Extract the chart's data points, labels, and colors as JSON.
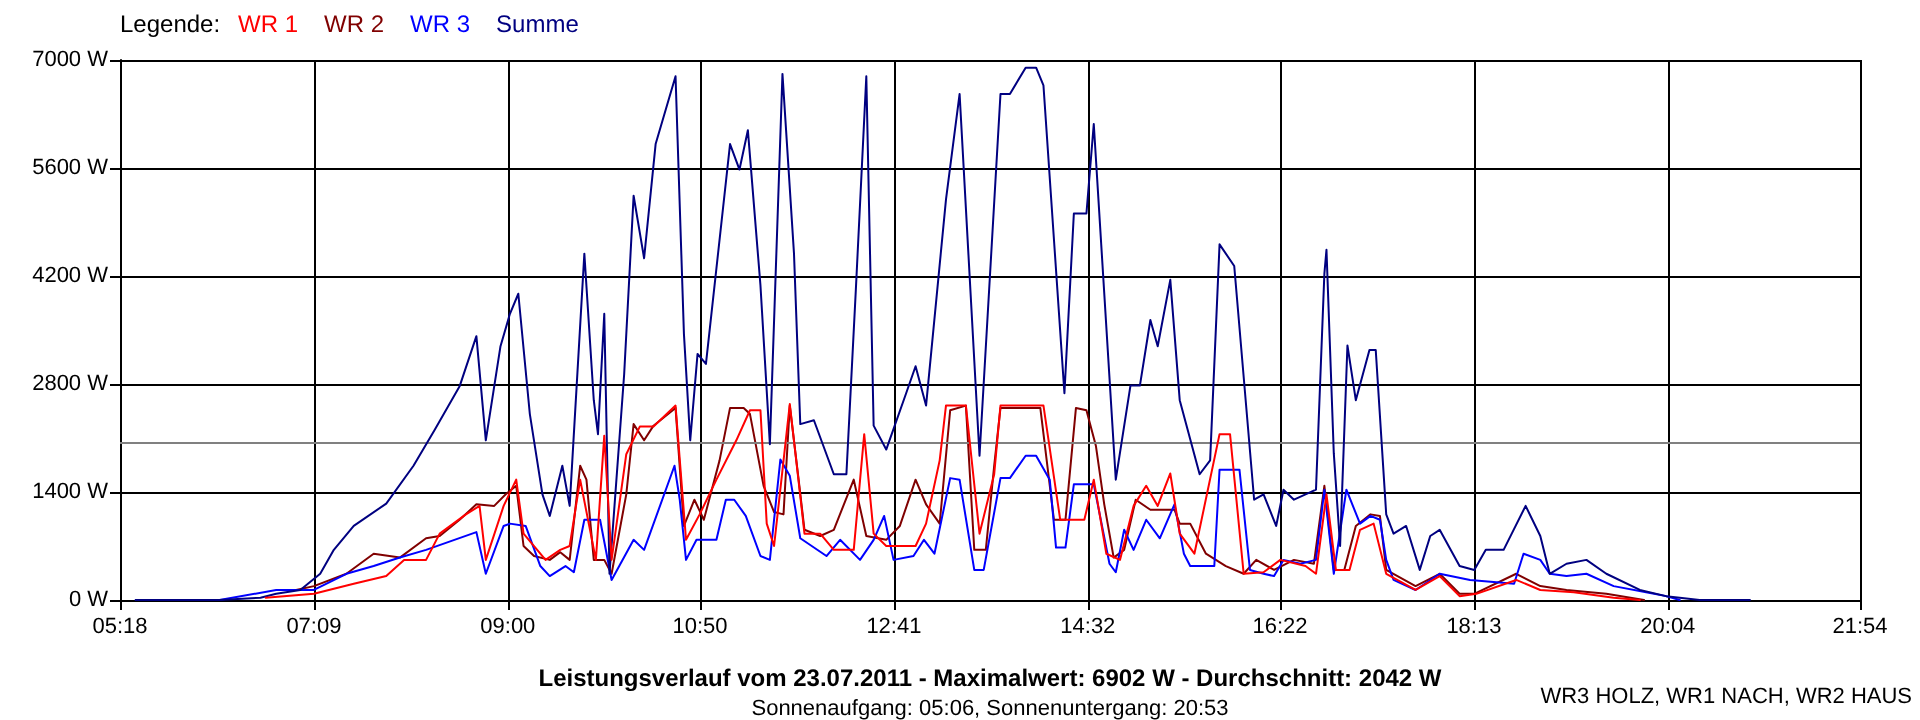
{
  "chart_data": {
    "type": "line",
    "title": "Leistungsverlauf vom 23.07.2011 - Maximalwert: 6902 W - Durchschnitt: 2042 W",
    "subtitle": "Sonnenaufgang: 05:06, Sonnenuntergang: 20:53",
    "legend_title": "Legende:",
    "annotations": [
      "WR3 HOLZ, WR1 NACH, WR2 HAUS"
    ],
    "legend": "top left",
    "grid": true,
    "marker": "none",
    "line_style": "solid",
    "xlim": [
      5.3,
      21.9
    ],
    "xticks": [
      {
        "value": 5.3,
        "label": "05:18"
      },
      {
        "value": 7.15,
        "label": "07:09"
      },
      {
        "value": 9.0,
        "label": "09:00"
      },
      {
        "value": 10.8333,
        "label": "10:50"
      },
      {
        "value": 12.6833,
        "label": "12:41"
      },
      {
        "value": 14.5333,
        "label": "14:32"
      },
      {
        "value": 16.3667,
        "label": "16:22"
      },
      {
        "value": 18.2167,
        "label": "18:13"
      },
      {
        "value": 20.0667,
        "label": "20:04"
      },
      {
        "value": 21.9,
        "label": "21:54"
      }
    ],
    "ylim": [
      0,
      7000
    ],
    "yticks": [
      {
        "value": 0,
        "label": "0 W"
      },
      {
        "value": 1400,
        "label": "1400 W"
      },
      {
        "value": 2800,
        "label": "2800 W"
      },
      {
        "value": 4200,
        "label": "4200 W"
      },
      {
        "value": 5600,
        "label": "5600 W"
      },
      {
        "value": 7000,
        "label": "7000 W"
      }
    ],
    "ref_lines": [
      {
        "axis": "y",
        "value": 2042,
        "color": "#808080"
      }
    ],
    "series": [
      {
        "name": "WR 1",
        "color": "#ff0000",
        "x": [
          6.69,
          7.15,
          7.53,
          7.84,
          8.01,
          8.22,
          8.35,
          8.6,
          8.73,
          8.79,
          8.96,
          9.08,
          9.15,
          9.36,
          9.5,
          9.59,
          9.69,
          9.84,
          9.92,
          9.99,
          10.13,
          10.26,
          10.39,
          10.6,
          10.7,
          10.83,
          10.99,
          11.18,
          11.31,
          11.41,
          11.47,
          11.54,
          11.69,
          11.79,
          11.83,
          11.98,
          12.11,
          12.3,
          12.4,
          12.49,
          12.61,
          12.89,
          12.99,
          13.12,
          13.18,
          13.37,
          13.5,
          13.64,
          13.7,
          14.11,
          14.27,
          14.5,
          14.59,
          14.71,
          14.84,
          14.97,
          15.09,
          15.2,
          15.32,
          15.41,
          15.55,
          15.79,
          15.89,
          16.02,
          16.21,
          16.37,
          16.61,
          16.71,
          16.81,
          16.9,
          17.03,
          17.13,
          17.26,
          17.38,
          17.66,
          17.89,
          18.08,
          18.24,
          18.62,
          18.85,
          19.17,
          19.55,
          19.8
        ],
        "values": [
          30,
          80,
          210,
          310,
          520,
          520,
          860,
          1110,
          1220,
          520,
          1220,
          1560,
          860,
          520,
          650,
          700,
          1560,
          520,
          2130,
          520,
          1890,
          2250,
          2250,
          2520,
          780,
          1110,
          1560,
          2070,
          2460,
          2460,
          990,
          700,
          2540,
          1350,
          860,
          860,
          650,
          650,
          2150,
          860,
          700,
          700,
          990,
          1810,
          2520,
          2520,
          860,
          1630,
          2520,
          2520,
          1040,
          1040,
          1560,
          600,
          520,
          1220,
          1480,
          1220,
          1640,
          860,
          600,
          2150,
          2150,
          340,
          360,
          520,
          440,
          340,
          1370,
          390,
          390,
          910,
          990,
          340,
          130,
          310,
          50,
          80,
          260,
          130,
          100,
          30,
          0
        ]
      },
      {
        "name": "WR 2",
        "color": "#800000",
        "x": [
          6.98,
          7.15,
          7.46,
          7.72,
          7.97,
          8.22,
          8.35,
          8.54,
          8.7,
          8.87,
          8.98,
          9.08,
          9.15,
          9.25,
          9.4,
          9.5,
          9.59,
          9.69,
          9.75,
          9.82,
          9.92,
          9.99,
          10.13,
          10.2,
          10.3,
          10.39,
          10.6,
          10.68,
          10.78,
          10.87,
          11.02,
          11.12,
          11.25,
          11.31,
          11.44,
          11.54,
          11.63,
          11.69,
          11.77,
          11.83,
          11.98,
          12.11,
          12.3,
          12.42,
          12.61,
          12.74,
          12.89,
          12.99,
          13.12,
          13.22,
          13.37,
          13.45,
          13.56,
          13.64,
          13.7,
          14.08,
          14.21,
          14.32,
          14.42,
          14.52,
          14.61,
          14.69,
          14.78,
          14.88,
          14.99,
          15.13,
          15.36,
          15.41,
          15.51,
          15.66,
          15.85,
          16.02,
          16.14,
          16.31,
          16.5,
          16.69,
          16.79,
          16.88,
          16.98,
          17.09,
          17.23,
          17.32,
          17.38,
          17.66,
          17.89,
          18.08,
          18.22,
          18.62,
          18.85,
          19.1,
          19.48,
          19.84
        ],
        "values": [
          130,
          180,
          340,
          600,
          550,
          800,
          830,
          1040,
          1240,
          1220,
          1370,
          1480,
          700,
          570,
          520,
          620,
          520,
          1740,
          1560,
          520,
          520,
          340,
          1370,
          2280,
          2070,
          2260,
          2490,
          960,
          1300,
          1040,
          1810,
          2490,
          2490,
          2410,
          1480,
          1140,
          1110,
          2520,
          1610,
          910,
          830,
          910,
          1560,
          830,
          780,
          960,
          1560,
          1240,
          990,
          2460,
          2520,
          650,
          650,
          1740,
          2490,
          2490,
          1040,
          1040,
          2490,
          2460,
          2000,
          1240,
          550,
          650,
          1300,
          1170,
          1170,
          990,
          990,
          600,
          440,
          340,
          520,
          390,
          520,
          470,
          1480,
          390,
          390,
          960,
          1110,
          1090,
          390,
          180,
          340,
          80,
          80,
          340,
          180,
          130,
          80,
          0
        ]
      },
      {
        "name": "WR 3",
        "color": "#0000ff",
        "x": [
          5.45,
          6.25,
          6.79,
          7.15,
          7.46,
          7.72,
          7.97,
          8.22,
          8.7,
          8.79,
          8.96,
          9.02,
          9.17,
          9.31,
          9.4,
          9.55,
          9.63,
          9.73,
          9.88,
          9.99,
          10.2,
          10.3,
          10.59,
          10.64,
          10.7,
          10.8,
          10.99,
          11.08,
          11.16,
          11.27,
          11.41,
          11.5,
          11.6,
          11.69,
          11.79,
          12.04,
          12.17,
          12.36,
          12.49,
          12.59,
          12.68,
          12.87,
          12.97,
          13.07,
          13.22,
          13.31,
          13.45,
          13.54,
          13.7,
          13.79,
          13.94,
          14.04,
          14.17,
          14.23,
          14.32,
          14.4,
          14.59,
          14.74,
          14.8,
          14.88,
          14.97,
          15.09,
          15.22,
          15.36,
          15.45,
          15.51,
          15.74,
          15.79,
          15.98,
          16.08,
          16.21,
          16.31,
          16.4,
          16.56,
          16.71,
          16.79,
          16.88,
          17.0,
          17.13,
          17.23,
          17.32,
          17.38,
          17.45,
          17.66,
          17.89,
          18.18,
          18.6,
          18.69,
          18.85,
          18.94,
          19.1,
          19.29,
          19.55,
          19.86,
          20.05,
          20.18
        ],
        "values": [
          0,
          0,
          130,
          130,
          340,
          440,
          550,
          650,
          880,
          340,
          960,
          990,
          960,
          440,
          310,
          440,
          360,
          1040,
          1040,
          260,
          780,
          650,
          1740,
          1300,
          520,
          780,
          780,
          1300,
          1300,
          1090,
          570,
          520,
          1820,
          1610,
          800,
          570,
          780,
          520,
          780,
          1090,
          520,
          570,
          780,
          600,
          1580,
          1560,
          390,
          390,
          1580,
          1580,
          1870,
          1870,
          1560,
          680,
          680,
          1500,
          1500,
          470,
          360,
          910,
          650,
          1040,
          800,
          1240,
          600,
          440,
          440,
          1690,
          1690,
          390,
          340,
          310,
          520,
          470,
          520,
          1430,
          340,
          1430,
          990,
          1090,
          1040,
          520,
          260,
          130,
          340,
          260,
          210,
          600,
          520,
          340,
          310,
          340,
          180,
          100,
          50,
          0
        ]
      },
      {
        "name": "Summe",
        "color": "#000080",
        "x": [
          5.45,
          6.25,
          6.64,
          6.79,
          7.02,
          7.21,
          7.34,
          7.53,
          7.84,
          8.1,
          8.3,
          8.54,
          8.7,
          8.79,
          8.93,
          9.02,
          9.1,
          9.21,
          9.33,
          9.4,
          9.52,
          9.59,
          9.73,
          9.82,
          9.86,
          9.92,
          9.97,
          10.11,
          10.2,
          10.3,
          10.41,
          10.6,
          10.68,
          10.74,
          10.81,
          10.89,
          11.12,
          11.21,
          11.29,
          11.41,
          11.5,
          11.62,
          11.73,
          11.79,
          11.92,
          12.11,
          12.23,
          12.32,
          12.42,
          12.49,
          12.61,
          12.8,
          12.89,
          12.99,
          13.18,
          13.31,
          13.5,
          13.7,
          13.79,
          13.94,
          14.04,
          14.11,
          14.31,
          14.4,
          14.52,
          14.59,
          14.8,
          14.94,
          15.03,
          15.13,
          15.2,
          15.32,
          15.41,
          15.6,
          15.7,
          15.79,
          15.93,
          16.12,
          16.21,
          16.33,
          16.4,
          16.5,
          16.71,
          16.79,
          16.81,
          16.88,
          16.94,
          17.01,
          17.09,
          17.22,
          17.28,
          17.38,
          17.45,
          17.57,
          17.7,
          17.8,
          17.89,
          18.08,
          18.22,
          18.33,
          18.5,
          18.71,
          18.85,
          18.94,
          19.1,
          19.29,
          19.48,
          19.8,
          20.05,
          20.18,
          20.37,
          20.85
        ],
        "values": [
          0,
          0,
          30,
          80,
          130,
          340,
          650,
          960,
          1250,
          1740,
          2200,
          2770,
          3420,
          2070,
          3290,
          3710,
          3970,
          2410,
          1370,
          1090,
          1740,
          1220,
          4490,
          2590,
          2150,
          3710,
          340,
          2930,
          5240,
          4430,
          5910,
          6790,
          3450,
          2070,
          3190,
          3060,
          5910,
          5580,
          6090,
          4080,
          2020,
          6820,
          4490,
          2280,
          2330,
          1630,
          1630,
          4020,
          6790,
          2260,
          1950,
          2680,
          3030,
          2520,
          5190,
          6560,
          1870,
          6560,
          6560,
          6900,
          6900,
          6670,
          2680,
          5010,
          5010,
          6170,
          1560,
          2780,
          2780,
          3630,
          3290,
          4150,
          2590,
          1630,
          1810,
          4610,
          4330,
          1300,
          1370,
          960,
          1430,
          1300,
          1430,
          4230,
          4540,
          1900,
          700,
          3300,
          2590,
          3240,
          3240,
          1110,
          860,
          960,
          390,
          830,
          910,
          440,
          390,
          650,
          650,
          1220,
          830,
          340,
          470,
          520,
          340,
          130,
          50,
          30,
          0,
          0
        ]
      }
    ]
  }
}
